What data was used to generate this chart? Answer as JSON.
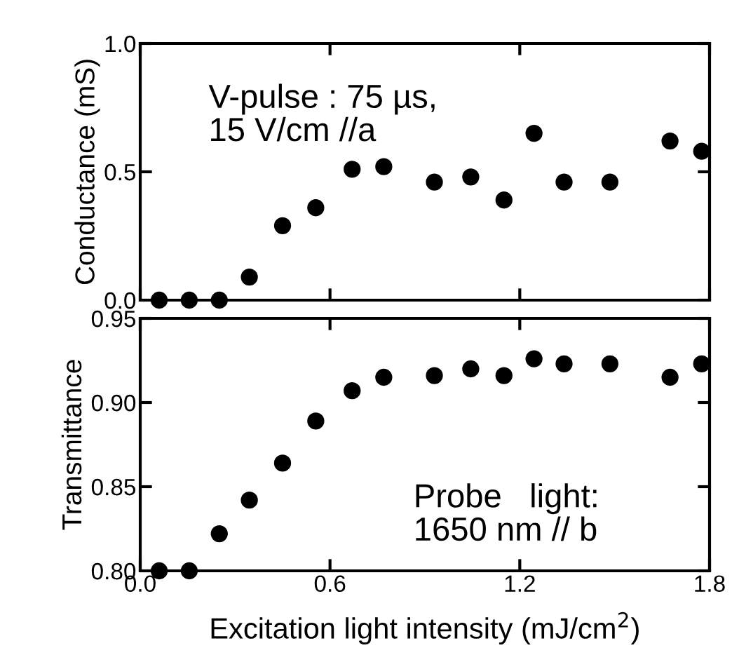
{
  "chart_data": [
    {
      "type": "scatter",
      "ylabel": "Conductance (mS)",
      "x": [
        0.06,
        0.155,
        0.25,
        0.345,
        0.45,
        0.555,
        0.67,
        0.77,
        0.93,
        1.045,
        1.15,
        1.245,
        1.34,
        1.485,
        1.675,
        1.775
      ],
      "series": [
        {
          "color": "#000000",
          "values": [
            0,
            0,
            0,
            0.09,
            0.29,
            0.36,
            0.51,
            0.52,
            0.46,
            0.48,
            0.39,
            0.65,
            0.46,
            0.46,
            0.62,
            0.58
          ]
        }
      ],
      "xlim": [
        0,
        1.8
      ],
      "xticks": [
        0,
        0.6,
        1.2,
        1.8
      ],
      "ylim": [
        0,
        1.0
      ],
      "yticks": [
        {
          "value": 0,
          "label": "0.0"
        },
        0.5,
        {
          "value": 1,
          "label": "1.0"
        }
      ],
      "tick_labels": "y",
      "marker": "circle",
      "grid": false,
      "legend": false,
      "annotations": [
        "V-pulse : 75 µs,\n15 V/cm //a"
      ]
    },
    {
      "type": "scatter",
      "ylabel": "Transmittance",
      "xlabel": "Excitation light intensity (mJ/cm$^{2}$)",
      "x": [
        0.06,
        0.155,
        0.25,
        0.345,
        0.45,
        0.555,
        0.67,
        0.77,
        0.93,
        1.045,
        1.15,
        1.245,
        1.34,
        1.485,
        1.675,
        1.775
      ],
      "series": [
        {
          "color": "#000000",
          "values": [
            0.8,
            0.8,
            0.822,
            0.842,
            0.864,
            0.889,
            0.907,
            0.915,
            0.916,
            0.92,
            0.916,
            0.926,
            0.923,
            0.923,
            0.915,
            0.923
          ]
        }
      ],
      "xlim": [
        0,
        1.8
      ],
      "xticks": [
        {
          "value": 0,
          "label": "0.0"
        },
        0.6,
        1.2,
        1.8
      ],
      "ylim": [
        0.8,
        0.95
      ],
      "yticks": [
        {
          "value": 0.8,
          "label": "0.80"
        },
        {
          "value": 0.85,
          "label": "0.85"
        },
        {
          "value": 0.9,
          "label": "0.90"
        },
        {
          "value": 0.95,
          "label": "0.95"
        }
      ],
      "marker": "circle",
      "grid": false,
      "legend": false,
      "annotations": [
        "Probe   light:\n1650 nm // b"
      ]
    }
  ]
}
